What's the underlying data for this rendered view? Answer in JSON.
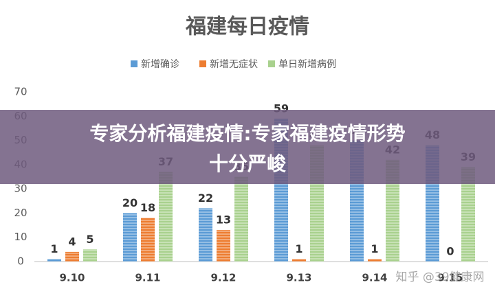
{
  "chart_data": {
    "type": "bar",
    "title": "福建每日疫情",
    "categories": [
      "9.10",
      "9.11",
      "9.12",
      "9.13",
      "9.14",
      "9.15"
    ],
    "series": [
      {
        "name": "新增确诊",
        "color": "#5b9bd5",
        "values": [
          1,
          20,
          22,
          59,
          50,
          48
        ]
      },
      {
        "name": "新增无症状",
        "color": "#ed7d31",
        "values": [
          4,
          18,
          13,
          1,
          1,
          0
        ]
      },
      {
        "name": "单日新增病例",
        "color": "#a9d18e",
        "values": [
          5,
          37,
          35,
          48,
          42,
          39
        ]
      }
    ],
    "ylim": [
      0,
      70
    ],
    "yticks": [
      0,
      10,
      20,
      30,
      40,
      50,
      60,
      70
    ],
    "grid": false,
    "legend": "top"
  },
  "overlay": {
    "banner": "专家分析福建疫情:专家福建疫情形势十分严峻",
    "watermark": "知乎 @39健康网"
  }
}
